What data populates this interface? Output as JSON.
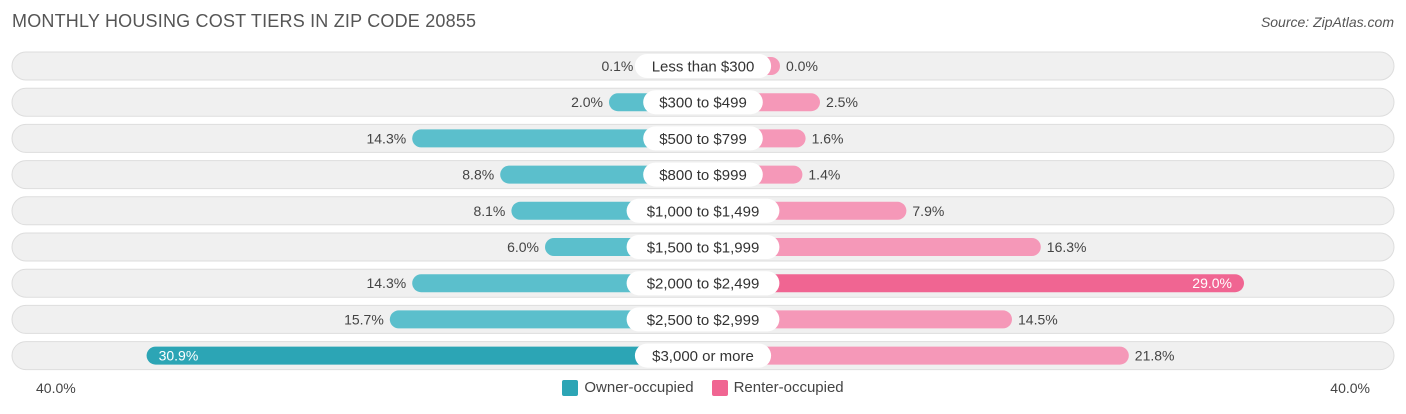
{
  "title": "MONTHLY HOUSING COST TIERS IN ZIP CODE 20855",
  "source": "Source: ZipAtlas.com",
  "colors": {
    "owner": "#5bbfcc",
    "owner_dark": "#2ca5b5",
    "renter": "#f598b8",
    "renter_dark": "#f06592",
    "row_bg": "#f0f0f0",
    "row_border": "#dddddd"
  },
  "legend": {
    "owner_label": "Owner-occupied",
    "renter_label": "Renter-occupied"
  },
  "axis": {
    "left_label": "40.0%",
    "right_label": "40.0%"
  },
  "chart_data": {
    "type": "bar",
    "orientation": "horizontal-diverging",
    "max": 40.0,
    "categories": [
      "Less than $300",
      "$300 to $499",
      "$500 to $799",
      "$800 to $999",
      "$1,000 to $1,499",
      "$1,500 to $1,999",
      "$2,000 to $2,499",
      "$2,500 to $2,999",
      "$3,000 or more"
    ],
    "series": [
      {
        "name": "Owner-occupied",
        "values": [
          0.1,
          2.0,
          14.3,
          8.8,
          8.1,
          6.0,
          14.3,
          15.7,
          30.9
        ],
        "labels": [
          "0.1%",
          "2.0%",
          "14.3%",
          "8.8%",
          "8.1%",
          "6.0%",
          "14.3%",
          "15.7%",
          "30.9%"
        ]
      },
      {
        "name": "Renter-occupied",
        "values": [
          0.0,
          2.5,
          1.6,
          1.4,
          7.9,
          16.3,
          29.0,
          14.5,
          21.8
        ],
        "labels": [
          "0.0%",
          "2.5%",
          "1.6%",
          "1.4%",
          "7.9%",
          "16.3%",
          "29.0%",
          "14.5%",
          "21.8%"
        ]
      }
    ]
  }
}
